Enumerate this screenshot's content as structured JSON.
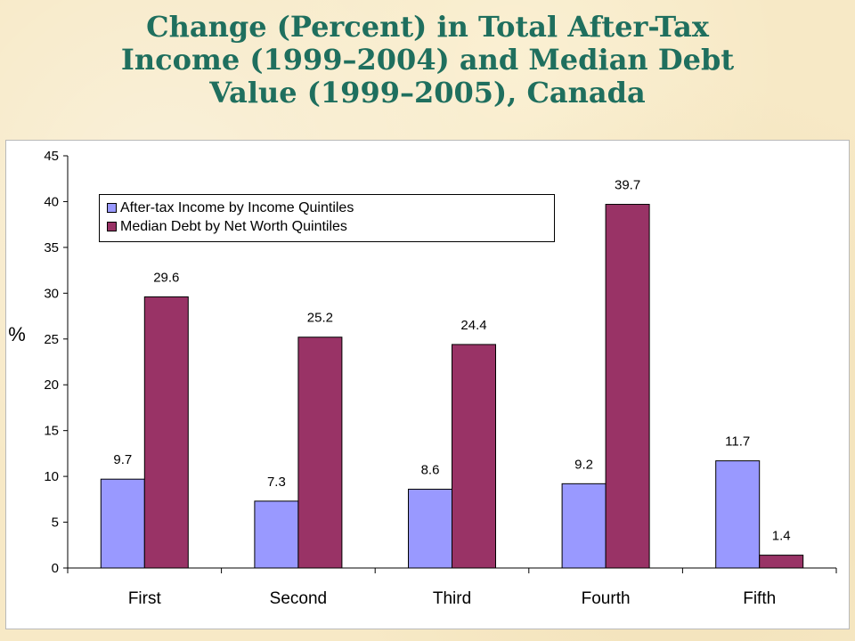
{
  "page": {
    "title_lines": [
      "Change (Percent) in Total After-Tax",
      "Income (1999–2004) and Median Debt",
      "Value (1999–2005), Canada"
    ]
  },
  "colors": {
    "series_1": "#9999ff",
    "series_2": "#993366",
    "title": "#1f6f5e"
  },
  "chart_data": {
    "type": "bar",
    "title": "Change (Percent) in Total After-Tax Income (1999–2004) and Median Debt Value (1999–2005), Canada",
    "categories": [
      "First",
      "Second",
      "Third",
      "Fourth",
      "Fifth"
    ],
    "series": [
      {
        "name": "After-tax Income by Income Quintiles",
        "values": [
          9.7,
          7.3,
          8.6,
          9.2,
          11.7
        ]
      },
      {
        "name": "Median Debt by Net Worth Quintiles",
        "values": [
          29.6,
          25.2,
          24.4,
          39.7,
          1.4
        ]
      }
    ],
    "ylabel": "%",
    "xlabel": "",
    "ylim": [
      0,
      45
    ],
    "yticks": [
      0,
      5,
      10,
      15,
      20,
      25,
      30,
      35,
      40,
      45
    ],
    "grid": false,
    "data_labels": true,
    "legend_placement": "top-left"
  }
}
